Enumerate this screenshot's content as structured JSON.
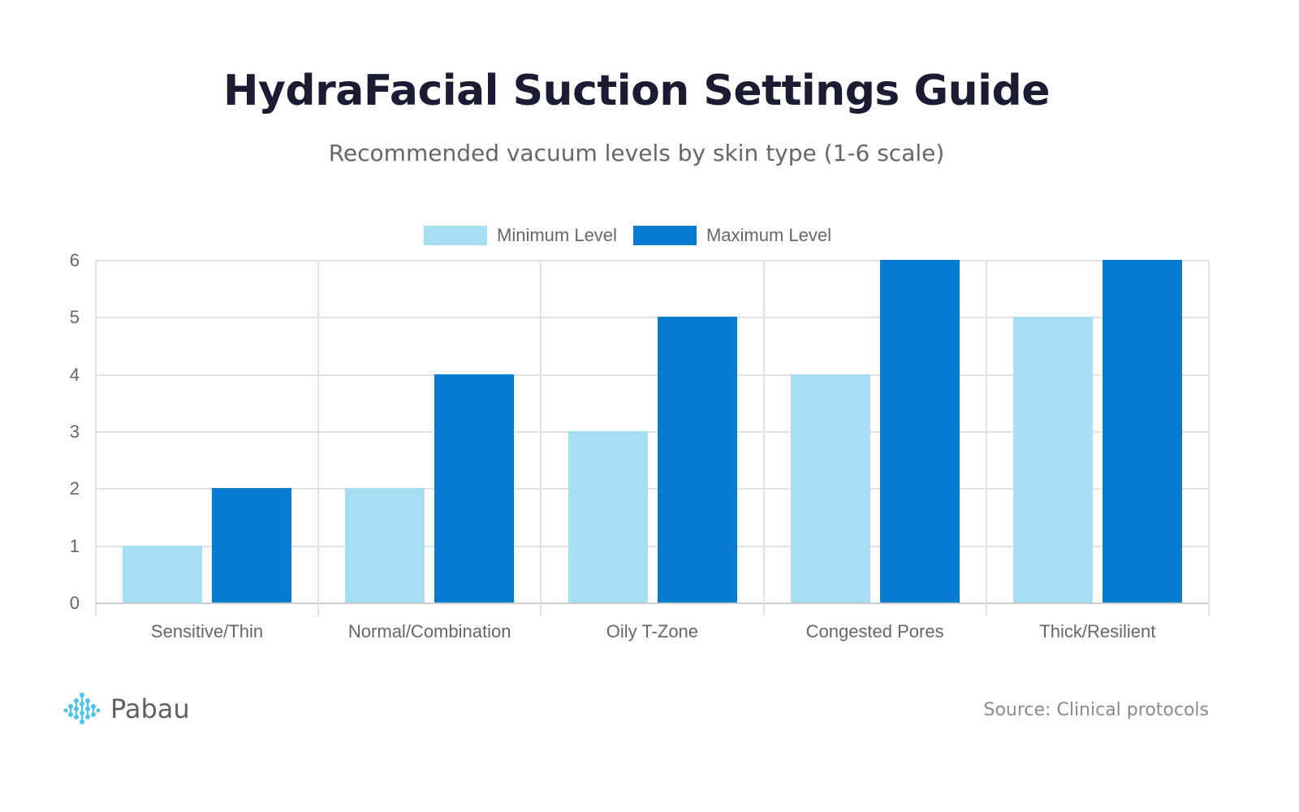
{
  "header": {
    "title": "HydraFacial Suction Settings Guide",
    "subtitle": "Recommended vacuum levels by skin type (1-6 scale)"
  },
  "legend": [
    {
      "label": "Minimum Level",
      "color": "#a6dff3"
    },
    {
      "label": "Maximum Level",
      "color": "#057bd2"
    }
  ],
  "axis": {
    "y_ticks": [
      "0",
      "1",
      "2",
      "3",
      "4",
      "5",
      "6"
    ]
  },
  "footer": {
    "brand": "Pabau",
    "source": "Source: Clinical protocols"
  },
  "chart_data": {
    "type": "bar",
    "title": "HydraFacial Suction Settings Guide",
    "subtitle": "Recommended vacuum levels by skin type (1-6 scale)",
    "categories": [
      "Sensitive/Thin",
      "Normal/Combination",
      "Oily T-Zone",
      "Congested Pores",
      "Thick/Resilient"
    ],
    "series": [
      {
        "name": "Minimum Level",
        "color": "#a6dff3",
        "values": [
          1,
          2,
          3,
          4,
          5
        ]
      },
      {
        "name": "Maximum Level",
        "color": "#057bd2",
        "values": [
          2,
          4,
          5,
          6,
          6
        ]
      }
    ],
    "xlabel": "",
    "ylabel": "",
    "ylim": [
      0,
      6
    ],
    "grid": true,
    "legend_position": "top"
  }
}
